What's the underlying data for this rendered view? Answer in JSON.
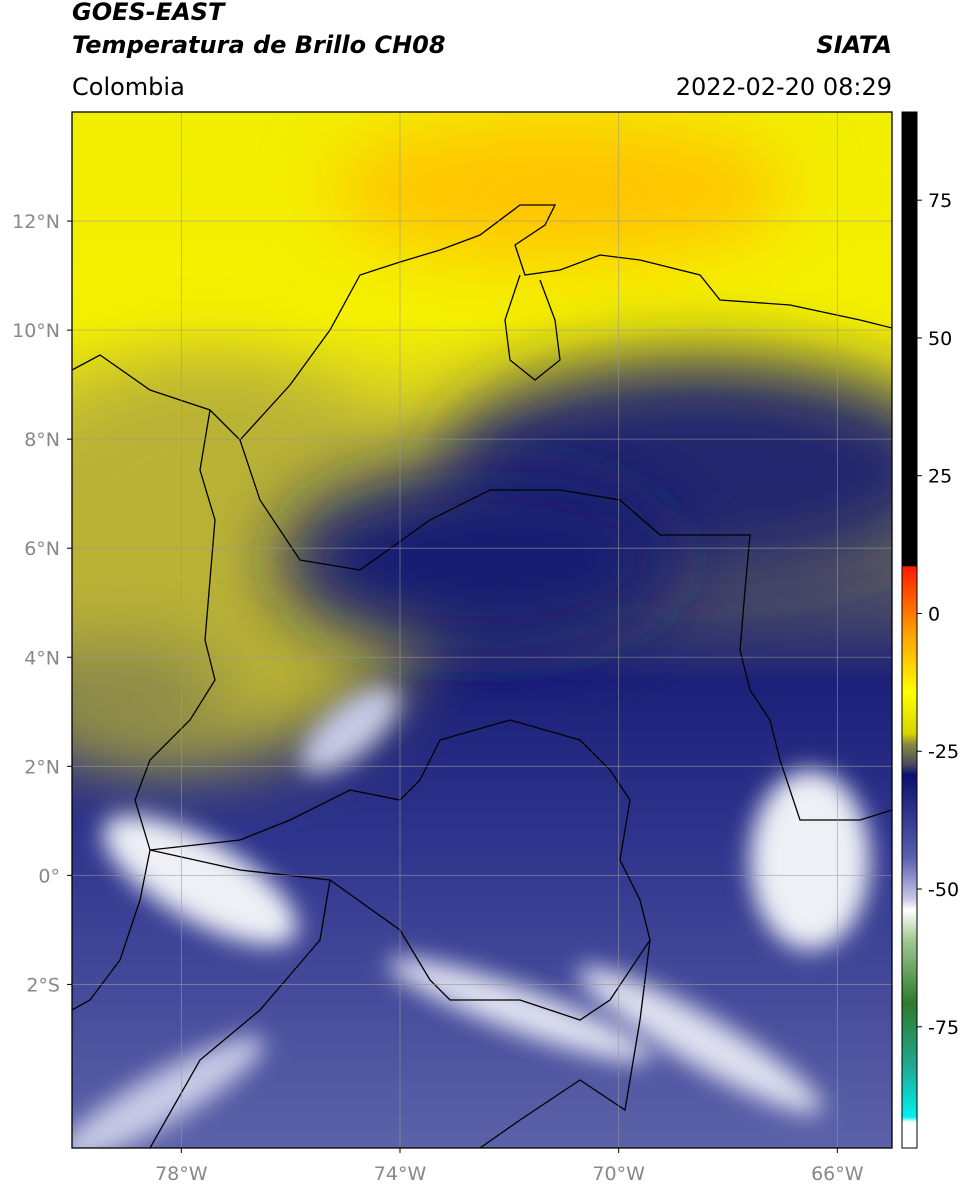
{
  "header": {
    "title": "GOES-EAST",
    "subtitle": "Temperatura de Brillo CH08",
    "source": "SIATA",
    "region": "Colombia",
    "datetime": "2022-02-20 08:29"
  },
  "map": {
    "xlim": [
      -80,
      -65
    ],
    "ylim": [
      -5,
      14
    ],
    "grid": true,
    "xticks": [
      {
        "value": -78,
        "label": "78°W"
      },
      {
        "value": -74,
        "label": "74°W"
      },
      {
        "value": -70,
        "label": "70°W"
      },
      {
        "value": -66,
        "label": "66°W"
      }
    ],
    "yticks": [
      {
        "value": 12,
        "label": "12°N"
      },
      {
        "value": 10,
        "label": "10°N"
      },
      {
        "value": 8,
        "label": "8°N"
      },
      {
        "value": 6,
        "label": "6°N"
      },
      {
        "value": 4,
        "label": "4°N"
      },
      {
        "value": 2,
        "label": "2°N"
      },
      {
        "value": 0,
        "label": "0°"
      },
      {
        "value": -2,
        "label": "2°S"
      }
    ]
  },
  "colorbar": {
    "lim": [
      -97,
      91
    ],
    "ticks": [
      75,
      50,
      25,
      0,
      -25,
      -50,
      -75
    ]
  }
}
